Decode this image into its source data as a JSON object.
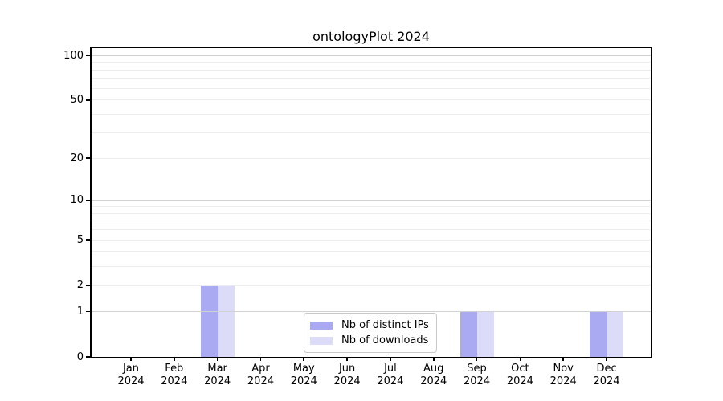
{
  "chart_data": {
    "type": "bar",
    "title": "ontologyPlot 2024",
    "categories": [
      "Jan",
      "Feb",
      "Mar",
      "Apr",
      "May",
      "Jun",
      "Jul",
      "Aug",
      "Sep",
      "Oct",
      "Nov",
      "Dec"
    ],
    "x_year_line": "2024",
    "series": [
      {
        "name": "Nb of distinct IPs",
        "color": "#aaaaf2",
        "values": [
          0,
          0,
          2,
          0,
          0,
          0,
          0,
          0,
          1,
          0,
          0,
          1
        ]
      },
      {
        "name": "Nb of downloads",
        "color": "#dcdcf8",
        "values": [
          0,
          0,
          2,
          0,
          0,
          0,
          0,
          0,
          1,
          0,
          0,
          1
        ]
      }
    ],
    "xlabel": "",
    "ylabel": "",
    "yticks": [
      0,
      1,
      2,
      5,
      10,
      20,
      50,
      100
    ],
    "major_gridlines": [
      1,
      10,
      100
    ],
    "minor_gridlines": [
      2,
      3,
      4,
      5,
      6,
      7,
      8,
      9,
      20,
      30,
      40,
      50,
      60,
      70,
      80,
      90
    ],
    "yscale": "log1p",
    "ylim": [
      0,
      112
    ],
    "grid": true,
    "legend_position": "lower-center",
    "colors": {
      "major_grid": "#d2d2d2",
      "minor_grid": "#ececec",
      "spine": "#000000",
      "background": "#ffffff",
      "text": "#000000",
      "legend_border": "#c9c9c9"
    }
  }
}
